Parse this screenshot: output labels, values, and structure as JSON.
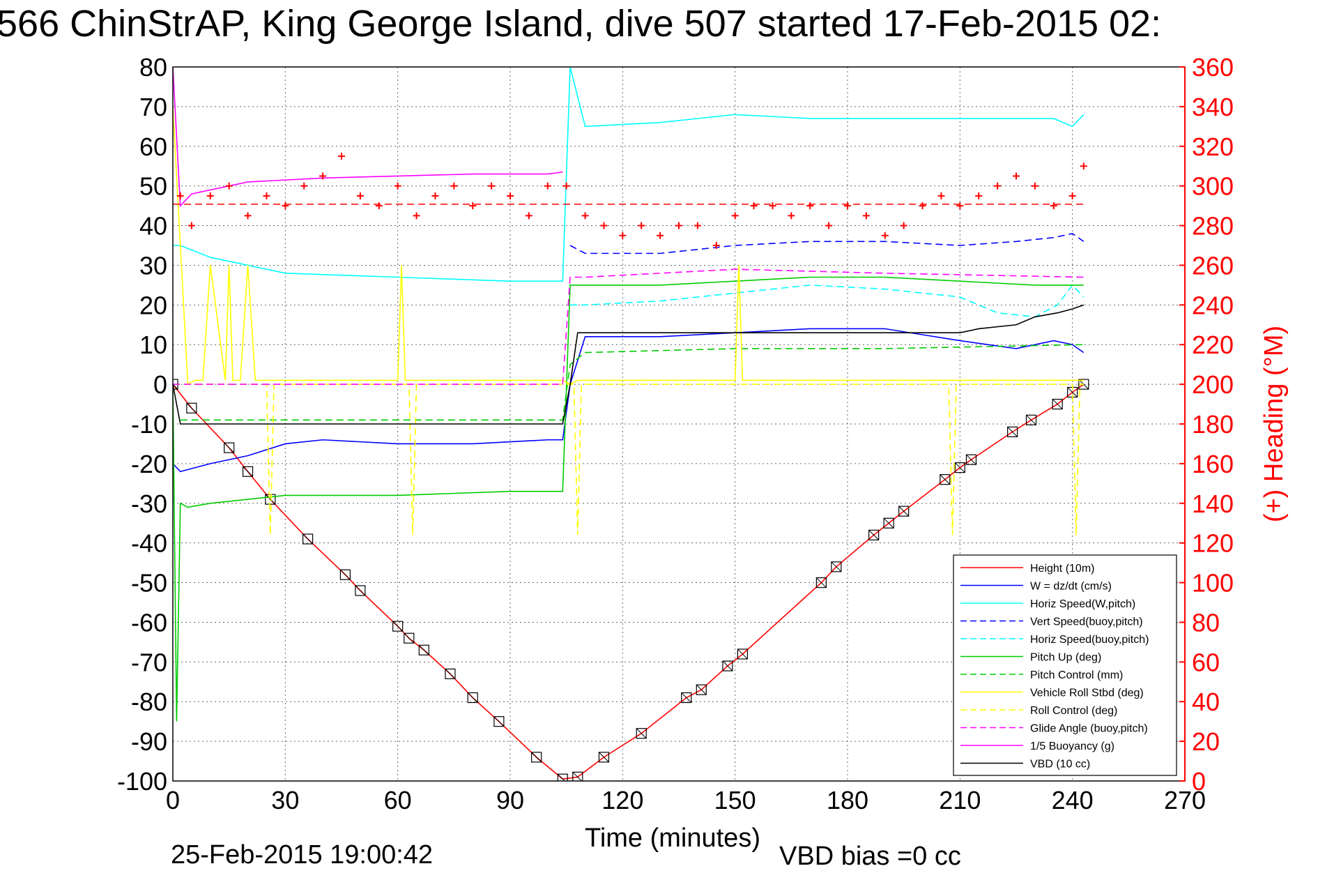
{
  "chart_data": {
    "type": "line",
    "title": "566 ChinStrAP, King George Island, dive 507 started 17-Feb-2015 02:",
    "xlabel": "Time (minutes)",
    "ylabel_left": "",
    "ylabel_right": "(+) Heading (°M)",
    "footer_date": "25-Feb-2015 19:00:42",
    "footer_vbd": "VBD bias =0 cc",
    "xlim": [
      0,
      270
    ],
    "ylim_left": [
      -100,
      80
    ],
    "ylim_right": [
      0,
      360
    ],
    "grid": true,
    "legend_position": "bottom-right",
    "x_ticks": [
      "0",
      "30",
      "60",
      "90",
      "120",
      "150",
      "180",
      "210",
      "240",
      "270"
    ],
    "y_ticks_left": [
      "80",
      "70",
      "60",
      "50",
      "40",
      "30",
      "20",
      "10",
      "0",
      "-10",
      "-20",
      "-30",
      "-40",
      "-50",
      "-60",
      "-70",
      "-80",
      "-90",
      "-100"
    ],
    "y_ticks_right": [
      "360",
      "340",
      "320",
      "300",
      "280",
      "260",
      "240",
      "220",
      "200",
      "180",
      "160",
      "140",
      "120",
      "100",
      "80",
      "60",
      "40",
      "20",
      "0"
    ],
    "legend": [
      {
        "label": "Height (10m)",
        "color": "#ff0000",
        "dash": "solid"
      },
      {
        "label": "W = dz/dt (cm/s)",
        "color": "#0000ff",
        "dash": "solid"
      },
      {
        "label": "Horiz Speed(W,pitch)",
        "color": "#00ffff",
        "dash": "solid"
      },
      {
        "label": "Vert Speed(buoy,pitch)",
        "color": "#0000ff",
        "dash": "dashed"
      },
      {
        "label": "Horiz Speed(buoy,pitch)",
        "color": "#00ffff",
        "dash": "dashed"
      },
      {
        "label": "Pitch Up (deg)",
        "color": "#00cc00",
        "dash": "solid"
      },
      {
        "label": "Pitch Control (mm)",
        "color": "#00cc00",
        "dash": "dashed"
      },
      {
        "label": "Vehicle Roll Stbd (deg)",
        "color": "#ffff00",
        "dash": "solid"
      },
      {
        "label": "Roll Control (deg)",
        "color": "#ffff00",
        "dash": "dashed"
      },
      {
        "label": "Glide Angle (buoy,pitch)",
        "color": "#ff00ff",
        "dash": "dashed"
      },
      {
        "label": "1/5 Buoyancy (g)",
        "color": "#ff00ff",
        "dash": "solid"
      },
      {
        "label": "VBD (10 cc)",
        "color": "#000000",
        "dash": "solid"
      }
    ],
    "series": [
      {
        "name": "Height (10m)",
        "color": "#ff0000",
        "dash": "solid",
        "axis": "left",
        "x": [
          0,
          5,
          15,
          20,
          26,
          36,
          46,
          50,
          60,
          63,
          67,
          74,
          80,
          87,
          97,
          104,
          108,
          115,
          125,
          137,
          141,
          148,
          152,
          173,
          177,
          187,
          191,
          195,
          206,
          210,
          213,
          224,
          229,
          236,
          240,
          243
        ],
        "y": [
          0,
          -6,
          -16,
          -22,
          -29,
          -39,
          -48,
          -52,
          -61,
          -64,
          -67,
          -73,
          -79,
          -85,
          -94,
          -99.5,
          -99,
          -94,
          -88,
          -79,
          -77,
          -71,
          -68,
          -50,
          -46,
          -38,
          -35,
          -32,
          -24,
          -21,
          -19,
          -12,
          -9,
          -5,
          -2,
          0
        ]
      },
      {
        "name": "W = dz/dt (cm/s)",
        "color": "#0000ff",
        "dash": "solid",
        "axis": "left",
        "x": [
          0,
          2,
          10,
          20,
          30,
          40,
          60,
          80,
          100,
          104,
          106,
          110,
          130,
          150,
          170,
          190,
          210,
          225,
          235,
          240,
          243
        ],
        "y": [
          -20,
          -22,
          -20,
          -18,
          -15,
          -14,
          -15,
          -15,
          -14,
          -14,
          0,
          12,
          12,
          13,
          14,
          14,
          11,
          9,
          11,
          10,
          8
        ]
      },
      {
        "name": "Horiz Speed(W,pitch)",
        "color": "#00ffff",
        "dash": "solid",
        "axis": "left",
        "x": [
          0,
          2,
          10,
          20,
          30,
          60,
          90,
          104,
          106,
          110,
          130,
          150,
          170,
          190,
          210,
          225,
          235,
          240,
          243
        ],
        "y": [
          35,
          35,
          32,
          30,
          28,
          27,
          26,
          26,
          80,
          65,
          66,
          68,
          67,
          67,
          67,
          67,
          67,
          65,
          68
        ]
      },
      {
        "name": "Vert Speed(buoy,pitch)",
        "color": "#0000ff",
        "dash": "dashed",
        "axis": "left",
        "x": [
          106,
          110,
          130,
          150,
          170,
          190,
          210,
          225,
          235,
          240,
          243
        ],
        "y": [
          35,
          33,
          33,
          35,
          36,
          36,
          35,
          36,
          37,
          38,
          36
        ]
      },
      {
        "name": "Horiz Speed(buoy,pitch)",
        "color": "#00ffff",
        "dash": "dashed",
        "axis": "left",
        "x": [
          106,
          110,
          130,
          150,
          170,
          190,
          210,
          220,
          230,
          236,
          240,
          243
        ],
        "y": [
          20,
          20,
          21,
          23,
          25,
          24,
          22,
          18,
          17,
          20,
          25,
          22
        ]
      },
      {
        "name": "Pitch Up (deg)",
        "color": "#00cc00",
        "dash": "solid",
        "axis": "left",
        "x": [
          0,
          1,
          2,
          4,
          10,
          20,
          30,
          60,
          90,
          104,
          106,
          110,
          130,
          150,
          170,
          190,
          210,
          230,
          243
        ],
        "y": [
          0,
          -85,
          -30,
          -31,
          -30,
          -29,
          -28,
          -28,
          -27,
          -27,
          25,
          25,
          25,
          26,
          27,
          27,
          26,
          25,
          25
        ]
      },
      {
        "name": "Pitch Control (mm)",
        "color": "#00cc00",
        "dash": "dashed",
        "axis": "left",
        "x": [
          2,
          104,
          106,
          110,
          150,
          190,
          243
        ],
        "y": [
          -9,
          -9,
          5,
          8,
          9,
          9,
          10
        ]
      },
      {
        "name": "Vehicle Roll Stbd (deg)",
        "color": "#ffff00",
        "dash": "solid",
        "axis": "left",
        "x": [
          0,
          4,
          6,
          8,
          10,
          14,
          15,
          16,
          18,
          20,
          22,
          24,
          60,
          61,
          62,
          90,
          104,
          106,
          108,
          150,
          151,
          152,
          210,
          220,
          230,
          240,
          243
        ],
        "y": [
          70,
          0,
          1,
          1,
          30,
          1,
          30,
          1,
          1,
          30,
          1,
          1,
          1,
          30,
          1,
          1,
          1,
          0,
          1,
          1,
          30,
          1,
          1,
          1,
          1,
          1,
          1
        ]
      },
      {
        "name": "Roll Control (deg)",
        "color": "#ffff00",
        "dash": "dashed",
        "axis": "left",
        "x": [
          0,
          25,
          26,
          27,
          63,
          64,
          65,
          107,
          108,
          109,
          207,
          208,
          209,
          240,
          241,
          242,
          243
        ],
        "y": [
          0,
          0,
          -38,
          0,
          0,
          -38,
          0,
          0,
          -38,
          0,
          0,
          -38,
          0,
          0,
          -38,
          0,
          0
        ]
      },
      {
        "name": "Glide Angle (buoy,pitch)",
        "color": "#ff00ff",
        "dash": "dashed",
        "axis": "left",
        "x": [
          0,
          104,
          106,
          110,
          150,
          190,
          243
        ],
        "y": [
          0,
          0,
          27,
          27,
          29,
          28,
          27
        ]
      },
      {
        "name": "1/5 Buoyancy (g)",
        "color": "#ff00ff",
        "dash": "solid",
        "axis": "left",
        "x": [
          0,
          2,
          5,
          20,
          40,
          60,
          80,
          100,
          104
        ],
        "y": [
          80,
          45,
          48,
          51,
          52,
          52.5,
          53,
          53,
          53.5
        ]
      },
      {
        "name": "VBD (10 cc)",
        "color": "#000000",
        "dash": "solid",
        "axis": "left",
        "x": [
          0,
          2,
          104,
          106,
          108,
          150,
          190,
          210,
          215,
          225,
          230,
          236,
          240,
          243
        ],
        "y": [
          0,
          -10,
          -10,
          0,
          13,
          13,
          13,
          13,
          14,
          15,
          17,
          18,
          19,
          20
        ]
      },
      {
        "name": "Heading",
        "color": "#ff0000",
        "dash": "markers",
        "axis": "right",
        "x": [
          2,
          5,
          10,
          15,
          20,
          25,
          30,
          35,
          40,
          45,
          50,
          55,
          60,
          65,
          70,
          75,
          80,
          85,
          90,
          95,
          100,
          105,
          110,
          115,
          120,
          125,
          130,
          135,
          140,
          145,
          150,
          155,
          160,
          165,
          170,
          175,
          180,
          185,
          190,
          195,
          200,
          205,
          210,
          215,
          220,
          225,
          230,
          235,
          240,
          243
        ],
        "y": [
          295,
          280,
          295,
          300,
          285,
          295,
          290,
          300,
          305,
          315,
          295,
          290,
          300,
          285,
          295,
          300,
          290,
          300,
          295,
          285,
          300,
          300,
          285,
          280,
          275,
          280,
          275,
          280,
          280,
          270,
          285,
          290,
          290,
          285,
          290,
          280,
          290,
          285,
          275,
          280,
          290,
          295,
          290,
          295,
          300,
          305,
          300,
          290,
          295,
          310
        ]
      }
    ]
  }
}
